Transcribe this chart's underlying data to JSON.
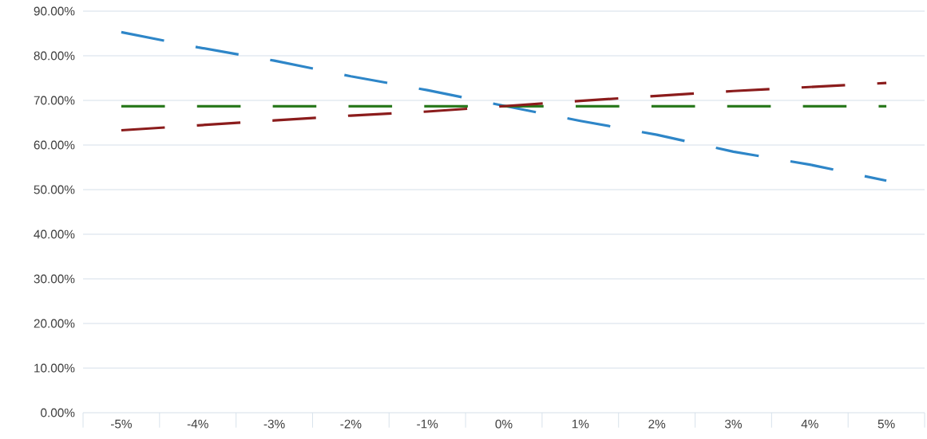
{
  "chart_data": {
    "type": "line",
    "categories": [
      "-5%",
      "-4%",
      "-3%",
      "-2%",
      "-1%",
      "0%",
      "1%",
      "2%",
      "3%",
      "4%",
      "5%"
    ],
    "series": [
      {
        "color": "#2e86c8",
        "values": [
          85.3,
          81.9,
          78.9,
          75.4,
          72.3,
          68.8,
          65.4,
          62.3,
          58.5,
          55.6,
          52.0
        ]
      },
      {
        "color": "#2b7a1f",
        "values": [
          68.7,
          68.7,
          68.7,
          68.7,
          68.7,
          68.7,
          68.7,
          68.7,
          68.7,
          68.7,
          68.7
        ]
      },
      {
        "color": "#8b1c1c",
        "values": [
          63.3,
          64.4,
          65.5,
          66.6,
          67.5,
          68.7,
          69.9,
          71.0,
          72.1,
          73.0,
          73.9
        ]
      }
    ],
    "ylim": [
      0,
      90
    ],
    "yticks": [
      {
        "value": 0,
        "label": "0.00%"
      },
      {
        "value": 10,
        "label": "10.00%"
      },
      {
        "value": 20,
        "label": "20.00%"
      },
      {
        "value": 30,
        "label": "30.00%"
      },
      {
        "value": 40,
        "label": "40.00%"
      },
      {
        "value": 50,
        "label": "50.00%"
      },
      {
        "value": 60,
        "label": "60.00%"
      },
      {
        "value": 70,
        "label": "70.00%"
      },
      {
        "value": 80,
        "label": "80.00%"
      },
      {
        "value": 90,
        "label": "90.00%"
      }
    ],
    "grid": "y",
    "line_style": "dashed"
  }
}
